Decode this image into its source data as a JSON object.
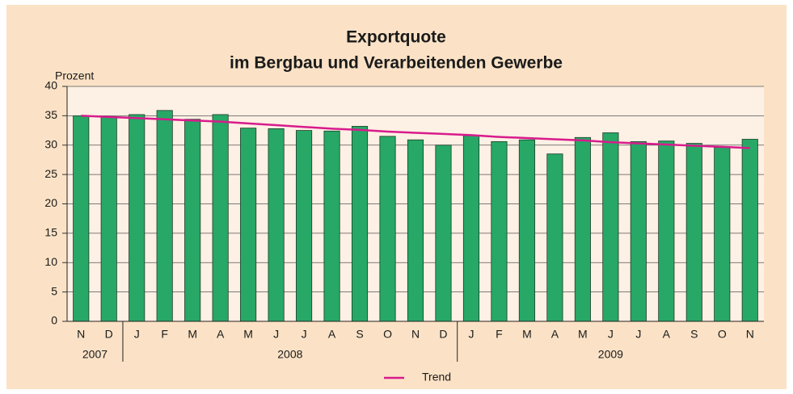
{
  "chart_data": {
    "type": "bar",
    "title": "Exportquote",
    "subtitle": "im Bergbau und Verarbeitenden Gewerbe",
    "y_label": "Prozent",
    "groups": [
      {
        "label": "2007",
        "categories": [
          "N",
          "D"
        ]
      },
      {
        "label": "2008",
        "categories": [
          "J",
          "F",
          "M",
          "A",
          "M",
          "J",
          "J",
          "A",
          "S",
          "O",
          "N",
          "D"
        ]
      },
      {
        "label": "2009",
        "categories": [
          "J",
          "F",
          "M",
          "A",
          "M",
          "J",
          "J",
          "A",
          "S",
          "O",
          "N"
        ]
      }
    ],
    "series": [
      {
        "color": "#27a866",
        "values": [
          35.0,
          34.8,
          35.2,
          35.9,
          34.4,
          35.2,
          32.9,
          32.8,
          32.5,
          32.4,
          33.2,
          31.5,
          30.9,
          30.0,
          31.6,
          30.6,
          30.9,
          28.5,
          31.3,
          32.1,
          30.6,
          30.7,
          30.3,
          29.6,
          31.0
        ]
      },
      {
        "name": "Trend",
        "type": "line",
        "color": "#d81b8c",
        "values": [
          35.0,
          34.8,
          34.6,
          34.4,
          34.2,
          34.0,
          33.7,
          33.4,
          33.1,
          32.8,
          32.6,
          32.3,
          32.1,
          31.9,
          31.7,
          31.4,
          31.2,
          31.0,
          30.8,
          30.5,
          30.3,
          30.1,
          29.9,
          29.7,
          29.5
        ]
      }
    ],
    "ylim": [
      0,
      40
    ],
    "yticks": [
      0,
      5,
      10,
      15,
      20,
      25,
      30,
      35,
      40
    ],
    "grid": true
  }
}
